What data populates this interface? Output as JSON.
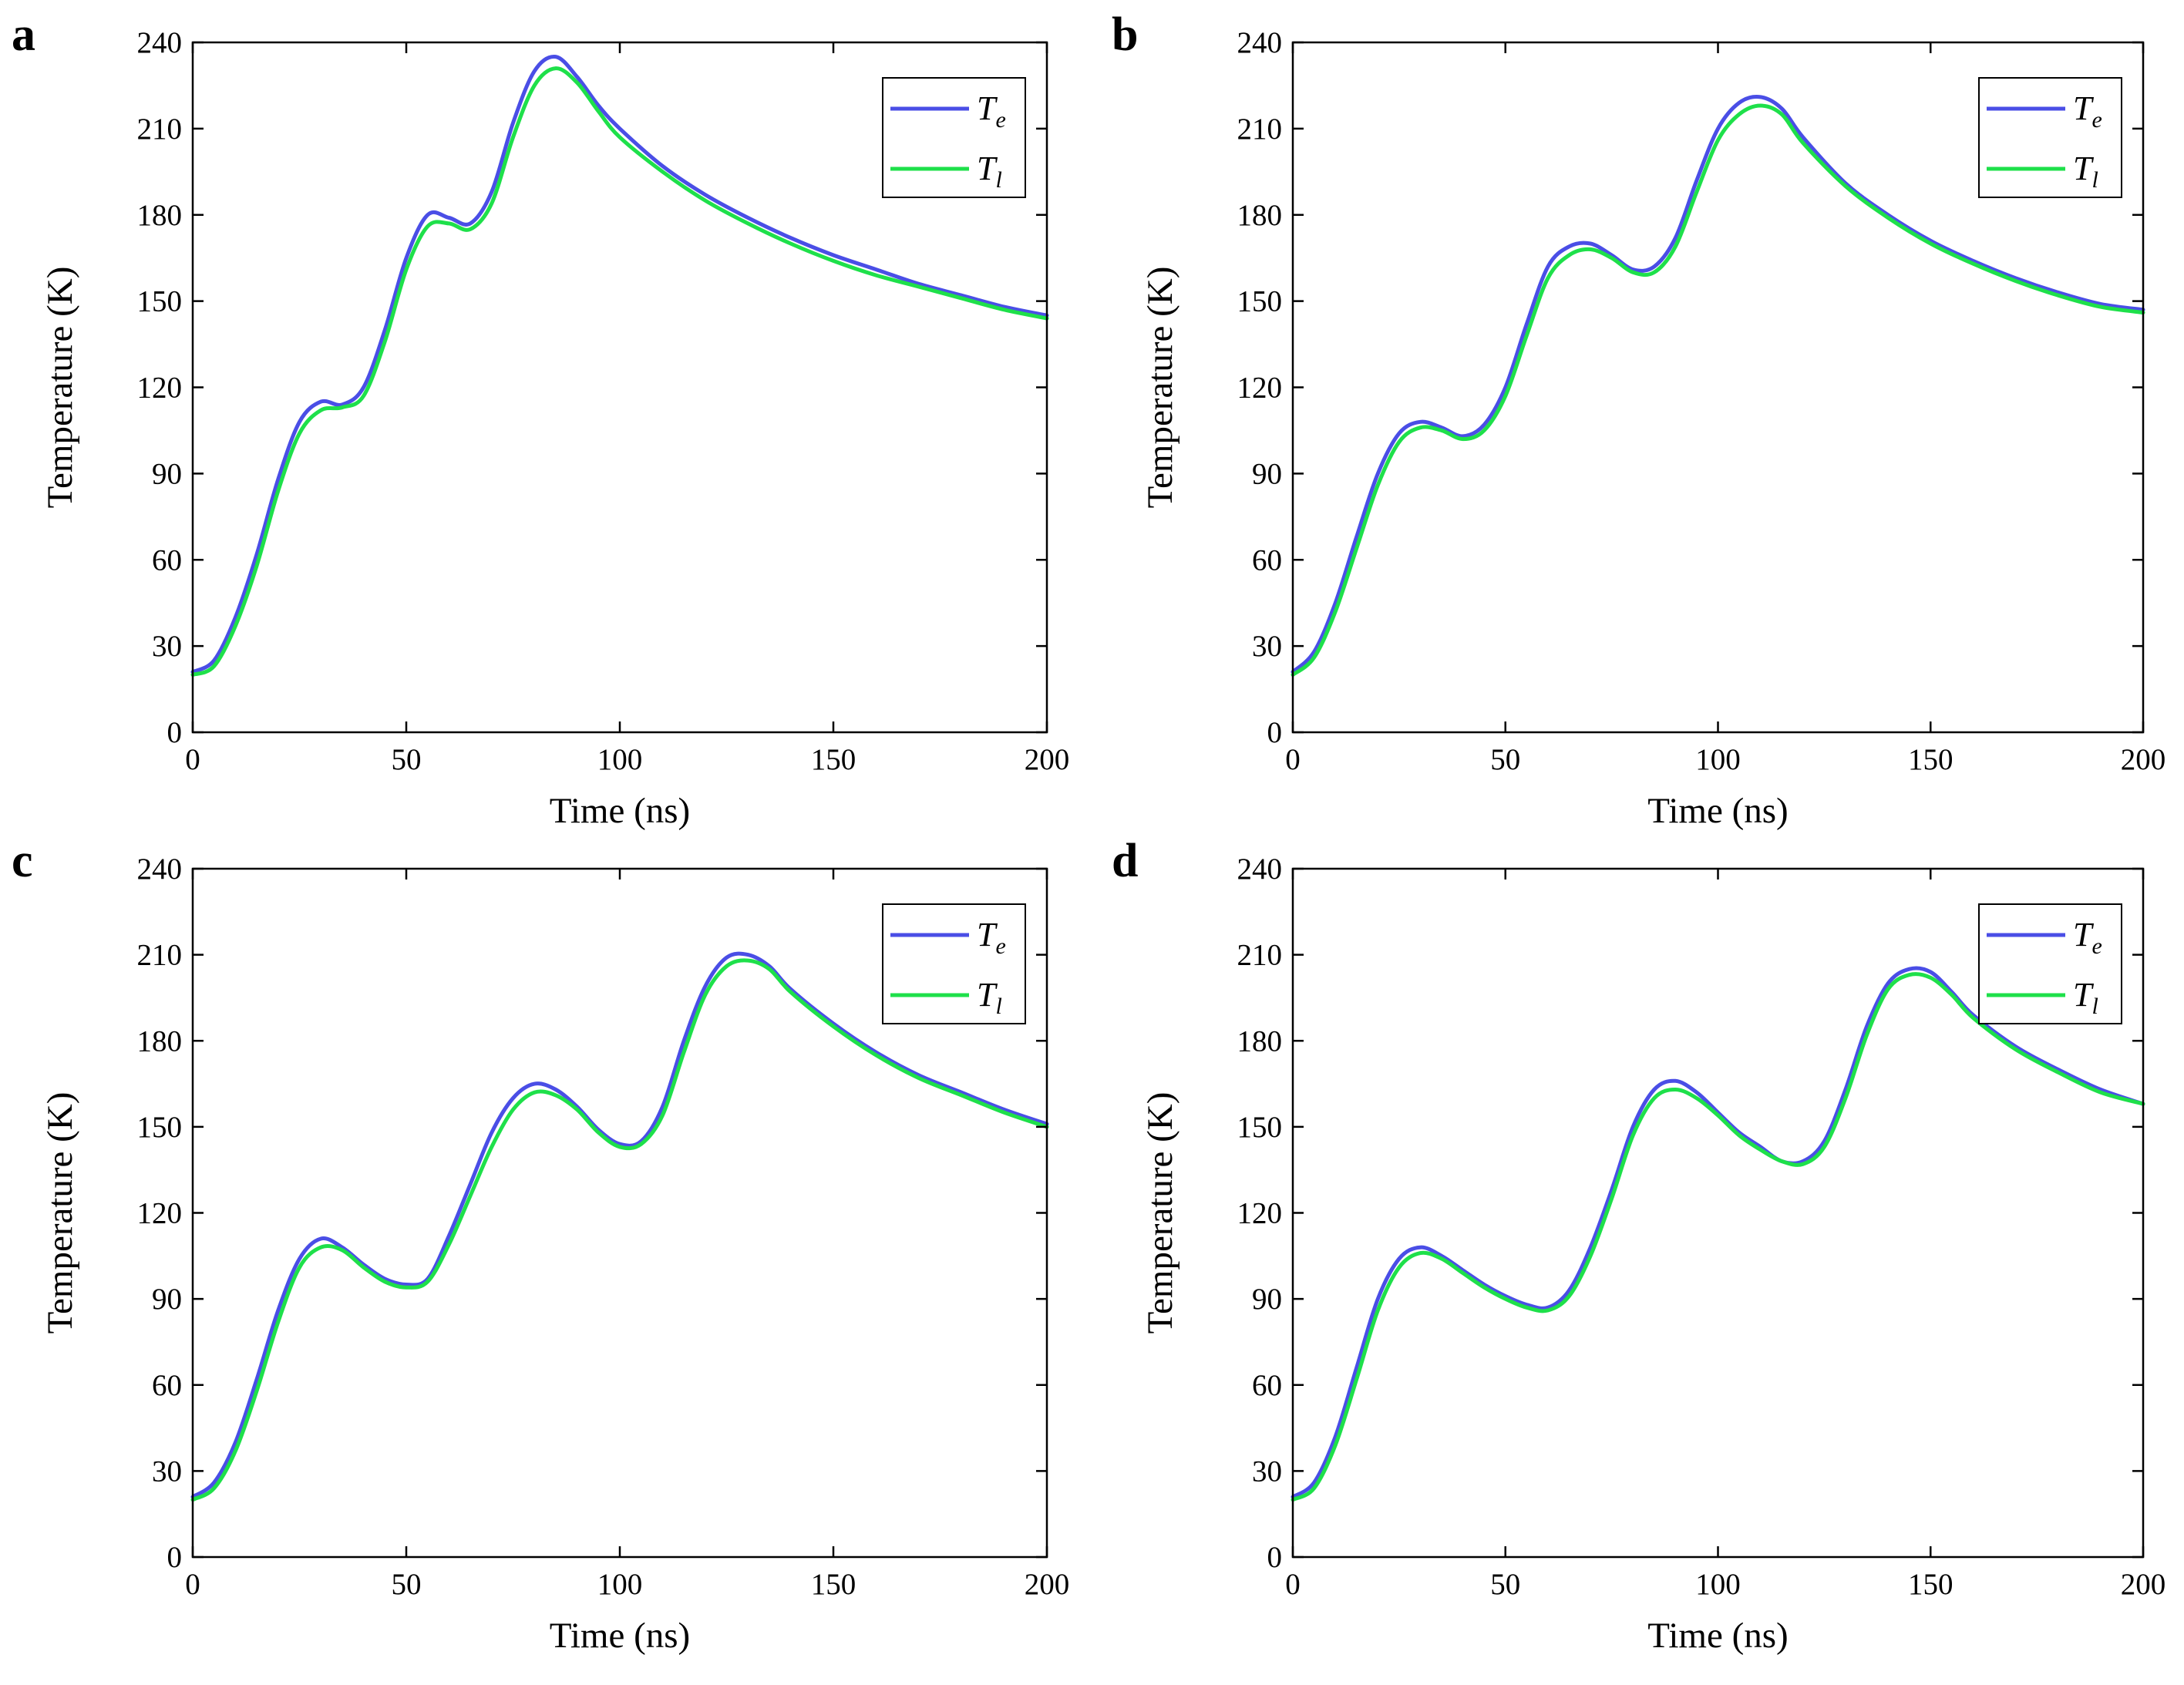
{
  "colors": {
    "Te": "#4a4ee6",
    "Tl": "#1ee04a",
    "axis": "#000000"
  },
  "chart_data": [
    {
      "panel": "a",
      "type": "line",
      "xlabel": "Time (ns)",
      "ylabel": "Temperature (K)",
      "xlim": [
        0,
        200
      ],
      "ylim": [
        0,
        240
      ],
      "xticks": [
        0,
        50,
        100,
        150,
        200
      ],
      "yticks": [
        0,
        30,
        60,
        90,
        120,
        150,
        180,
        210,
        240
      ],
      "grid": false,
      "legend": "top-right",
      "series": [
        {
          "name": "T",
          "sub": "e",
          "color_key": "Te",
          "x": [
            0,
            5,
            10,
            15,
            20,
            25,
            30,
            35,
            40,
            45,
            50,
            55,
            60,
            65,
            70,
            75,
            80,
            85,
            90,
            95,
            100,
            110,
            120,
            130,
            140,
            150,
            160,
            170,
            180,
            190,
            200
          ],
          "y": [
            21,
            25,
            40,
            62,
            88,
            108,
            115,
            114,
            120,
            140,
            165,
            180,
            179,
            177,
            188,
            212,
            230,
            235,
            228,
            218,
            210,
            197,
            187,
            179,
            172,
            166,
            161,
            156,
            152,
            148,
            145
          ]
        },
        {
          "name": "T",
          "sub": "l",
          "color_key": "Tl",
          "x": [
            0,
            5,
            10,
            15,
            20,
            25,
            30,
            35,
            40,
            45,
            50,
            55,
            60,
            65,
            70,
            75,
            80,
            85,
            90,
            95,
            100,
            110,
            120,
            130,
            140,
            150,
            160,
            170,
            180,
            190,
            200
          ],
          "y": [
            20,
            23,
            37,
            58,
            84,
            104,
            112,
            113,
            117,
            136,
            161,
            176,
            177,
            175,
            184,
            207,
            225,
            231,
            226,
            216,
            207,
            195,
            185,
            177,
            170,
            164,
            159,
            155,
            151,
            147,
            144
          ]
        }
      ]
    },
    {
      "panel": "b",
      "type": "line",
      "xlabel": "Time (ns)",
      "ylabel": "Temperature (K)",
      "xlim": [
        0,
        200
      ],
      "ylim": [
        0,
        240
      ],
      "xticks": [
        0,
        50,
        100,
        150,
        200
      ],
      "yticks": [
        0,
        30,
        60,
        90,
        120,
        150,
        180,
        210,
        240
      ],
      "grid": false,
      "legend": "top-right",
      "series": [
        {
          "name": "T",
          "sub": "e",
          "color_key": "Te",
          "x": [
            0,
            5,
            10,
            15,
            20,
            25,
            30,
            35,
            40,
            45,
            50,
            55,
            60,
            65,
            70,
            75,
            80,
            85,
            90,
            95,
            100,
            105,
            110,
            115,
            120,
            130,
            140,
            150,
            160,
            170,
            180,
            190,
            200
          ],
          "y": [
            21,
            28,
            45,
            68,
            90,
            104,
            108,
            106,
            103,
            107,
            120,
            142,
            162,
            169,
            170,
            166,
            161,
            162,
            172,
            192,
            210,
            219,
            221,
            217,
            207,
            191,
            180,
            171,
            164,
            158,
            153,
            149,
            147
          ]
        },
        {
          "name": "T",
          "sub": "l",
          "color_key": "Tl",
          "x": [
            0,
            5,
            10,
            15,
            20,
            25,
            30,
            35,
            40,
            45,
            50,
            55,
            60,
            65,
            70,
            75,
            80,
            85,
            90,
            95,
            100,
            105,
            110,
            115,
            120,
            130,
            140,
            150,
            160,
            170,
            180,
            190,
            200
          ],
          "y": [
            20,
            26,
            42,
            64,
            86,
            101,
            106,
            105,
            102,
            105,
            117,
            138,
            158,
            166,
            168,
            165,
            160,
            160,
            169,
            188,
            206,
            215,
            218,
            215,
            205,
            190,
            179,
            170,
            163,
            157,
            152,
            148,
            146
          ]
        }
      ]
    },
    {
      "panel": "c",
      "type": "line",
      "xlabel": "Time (ns)",
      "ylabel": "Temperature (K)",
      "xlim": [
        0,
        200
      ],
      "ylim": [
        0,
        240
      ],
      "xticks": [
        0,
        50,
        100,
        150,
        200
      ],
      "yticks": [
        0,
        30,
        60,
        90,
        120,
        150,
        180,
        210,
        240
      ],
      "grid": false,
      "legend": "top-right",
      "series": [
        {
          "name": "T",
          "sub": "e",
          "color_key": "Te",
          "x": [
            0,
            5,
            10,
            15,
            20,
            25,
            30,
            35,
            40,
            45,
            50,
            55,
            60,
            65,
            70,
            75,
            80,
            85,
            90,
            95,
            100,
            105,
            110,
            115,
            120,
            125,
            130,
            135,
            140,
            150,
            160,
            170,
            180,
            190,
            200
          ],
          "y": [
            21,
            26,
            40,
            62,
            86,
            104,
            111,
            108,
            102,
            97,
            95,
            97,
            112,
            130,
            148,
            160,
            165,
            163,
            157,
            149,
            144,
            145,
            157,
            180,
            199,
            209,
            210,
            206,
            198,
            186,
            176,
            168,
            162,
            156,
            151
          ]
        },
        {
          "name": "T",
          "sub": "l",
          "color_key": "Tl",
          "x": [
            0,
            5,
            10,
            15,
            20,
            25,
            30,
            35,
            40,
            45,
            50,
            55,
            60,
            65,
            70,
            75,
            80,
            85,
            90,
            95,
            100,
            105,
            110,
            115,
            120,
            125,
            130,
            135,
            140,
            150,
            160,
            170,
            180,
            190,
            200
          ],
          "y": [
            20,
            24,
            37,
            58,
            82,
            101,
            108,
            107,
            101,
            96,
            94,
            96,
            109,
            126,
            143,
            156,
            162,
            161,
            156,
            148,
            143,
            144,
            154,
            176,
            196,
            206,
            208,
            205,
            197,
            185,
            175,
            167,
            161,
            155,
            150
          ]
        }
      ]
    },
    {
      "panel": "d",
      "type": "line",
      "xlabel": "Time (ns)",
      "ylabel": "Temperature (K)",
      "xlim": [
        0,
        200
      ],
      "ylim": [
        0,
        240
      ],
      "xticks": [
        0,
        50,
        100,
        150,
        200
      ],
      "yticks": [
        0,
        30,
        60,
        90,
        120,
        150,
        180,
        210,
        240
      ],
      "grid": false,
      "legend": "top-right",
      "series": [
        {
          "name": "T",
          "sub": "e",
          "color_key": "Te",
          "x": [
            0,
            5,
            10,
            15,
            20,
            25,
            30,
            35,
            40,
            45,
            50,
            55,
            60,
            65,
            70,
            75,
            80,
            85,
            90,
            95,
            100,
            105,
            110,
            115,
            120,
            125,
            130,
            135,
            140,
            145,
            150,
            155,
            160,
            170,
            180,
            190,
            200
          ],
          "y": [
            21,
            26,
            42,
            66,
            90,
            104,
            108,
            105,
            100,
            95,
            91,
            88,
            87,
            93,
            108,
            128,
            150,
            163,
            166,
            162,
            155,
            148,
            143,
            138,
            138,
            145,
            163,
            185,
            200,
            205,
            204,
            197,
            189,
            178,
            170,
            163,
            158
          ]
        },
        {
          "name": "T",
          "sub": "l",
          "color_key": "Tl",
          "x": [
            0,
            5,
            10,
            15,
            20,
            25,
            30,
            35,
            40,
            45,
            50,
            55,
            60,
            65,
            70,
            75,
            80,
            85,
            90,
            95,
            100,
            105,
            110,
            115,
            120,
            125,
            130,
            135,
            140,
            145,
            150,
            155,
            160,
            170,
            180,
            190,
            200
          ],
          "y": [
            20,
            24,
            39,
            62,
            86,
            101,
            106,
            104,
            99,
            94,
            90,
            87,
            86,
            91,
            105,
            125,
            147,
            160,
            163,
            160,
            154,
            147,
            142,
            138,
            137,
            143,
            160,
            182,
            198,
            203,
            202,
            196,
            188,
            177,
            169,
            162,
            158
          ]
        }
      ]
    }
  ]
}
